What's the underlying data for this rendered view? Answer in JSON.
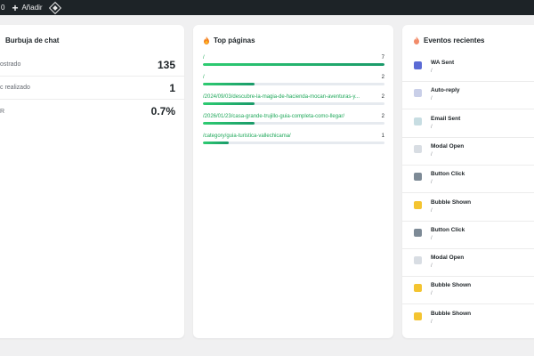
{
  "adminbar": {
    "count": "0",
    "add_label": "Añadir"
  },
  "bubble_card": {
    "title": "Burbuja de chat",
    "stats": [
      {
        "label": "ostrado",
        "value": "135"
      },
      {
        "label": "c realizado",
        "value": "1"
      },
      {
        "label": "R",
        "value": "0.7%"
      }
    ]
  },
  "top_pages_card": {
    "title": "Top páginas",
    "max": 7,
    "pages": [
      {
        "path": "/",
        "count": 7
      },
      {
        "path": "/",
        "count": 2
      },
      {
        "path": "/2024/09/03/descubre-la-magia-de-hacienda-mocan-aventuras-y...",
        "count": 2
      },
      {
        "path": "/2026/01/23/casa-grande-trujillo-guia-completa-como-llegar/",
        "count": 2
      },
      {
        "path": "/category/guia-turistica-vallechicama/",
        "count": 1
      }
    ]
  },
  "events_card": {
    "title": "Eventos recientes",
    "events": [
      {
        "name": "WA Sent",
        "path": "/",
        "icon": "whatsapp-sent-icon",
        "color": "#5b6bd5"
      },
      {
        "name": "Auto-reply",
        "path": "/",
        "icon": "auto-reply-icon",
        "color": "#c9cfe8"
      },
      {
        "name": "Email Sent",
        "path": "/",
        "icon": "email-icon",
        "color": "#c7dde2"
      },
      {
        "name": "Modal Open",
        "path": "/",
        "icon": "chat-bubble-icon",
        "color": "#d8dde3"
      },
      {
        "name": "Button Click",
        "path": "/",
        "icon": "phone-icon",
        "color": "#7d8a96"
      },
      {
        "name": "Bubble Shown",
        "path": "/",
        "icon": "lightbulb-icon",
        "color": "#f4c430"
      },
      {
        "name": "Button Click",
        "path": "/",
        "icon": "phone-icon",
        "color": "#7d8a96"
      },
      {
        "name": "Modal Open",
        "path": "/",
        "icon": "chat-bubble-icon",
        "color": "#d8dde3"
      },
      {
        "name": "Bubble Shown",
        "path": "/",
        "icon": "lightbulb-icon",
        "color": "#f4c430"
      },
      {
        "name": "Bubble Shown",
        "path": "/",
        "icon": "lightbulb-icon",
        "color": "#f4c430"
      }
    ]
  }
}
